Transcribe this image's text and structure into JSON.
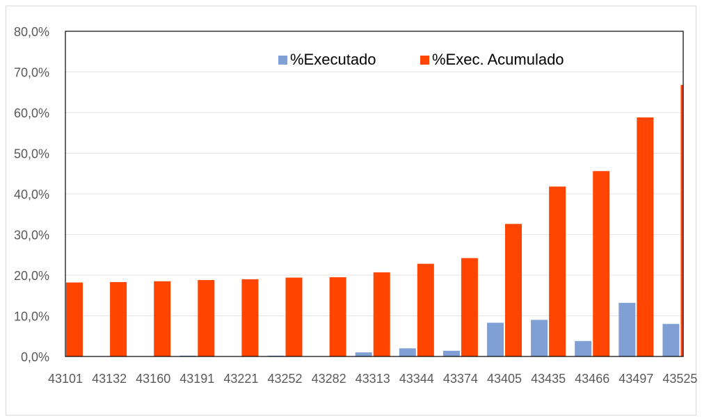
{
  "chart_data": {
    "type": "bar",
    "categories": [
      "43101",
      "43132",
      "43160",
      "43191",
      "43221",
      "43252",
      "43282",
      "43313",
      "43344",
      "43374",
      "43405",
      "43435",
      "43466",
      "43497",
      "43525"
    ],
    "series": [
      {
        "name": "%Executado",
        "color": "#7f9fd5",
        "values": [
          0.0,
          0.0,
          0.0,
          0.2,
          0.0,
          0.2,
          0.0,
          1.0,
          2.0,
          1.4,
          8.3,
          9.0,
          3.8,
          13.2,
          8.0
        ]
      },
      {
        "name": "%Exec. Acumulado",
        "color": "#ff4500",
        "values": [
          18.2,
          18.3,
          18.5,
          18.8,
          19.0,
          19.4,
          19.5,
          20.7,
          22.8,
          24.2,
          32.6,
          41.8,
          45.6,
          58.8,
          66.8
        ]
      }
    ],
    "ylim": [
      0,
      80
    ],
    "yticks": [
      "0,0%",
      "10,0%",
      "20,0%",
      "30,0%",
      "40,0%",
      "50,0%",
      "60,0%",
      "70,0%",
      "80,0%"
    ],
    "grid": true,
    "legend_position": "top-right"
  }
}
